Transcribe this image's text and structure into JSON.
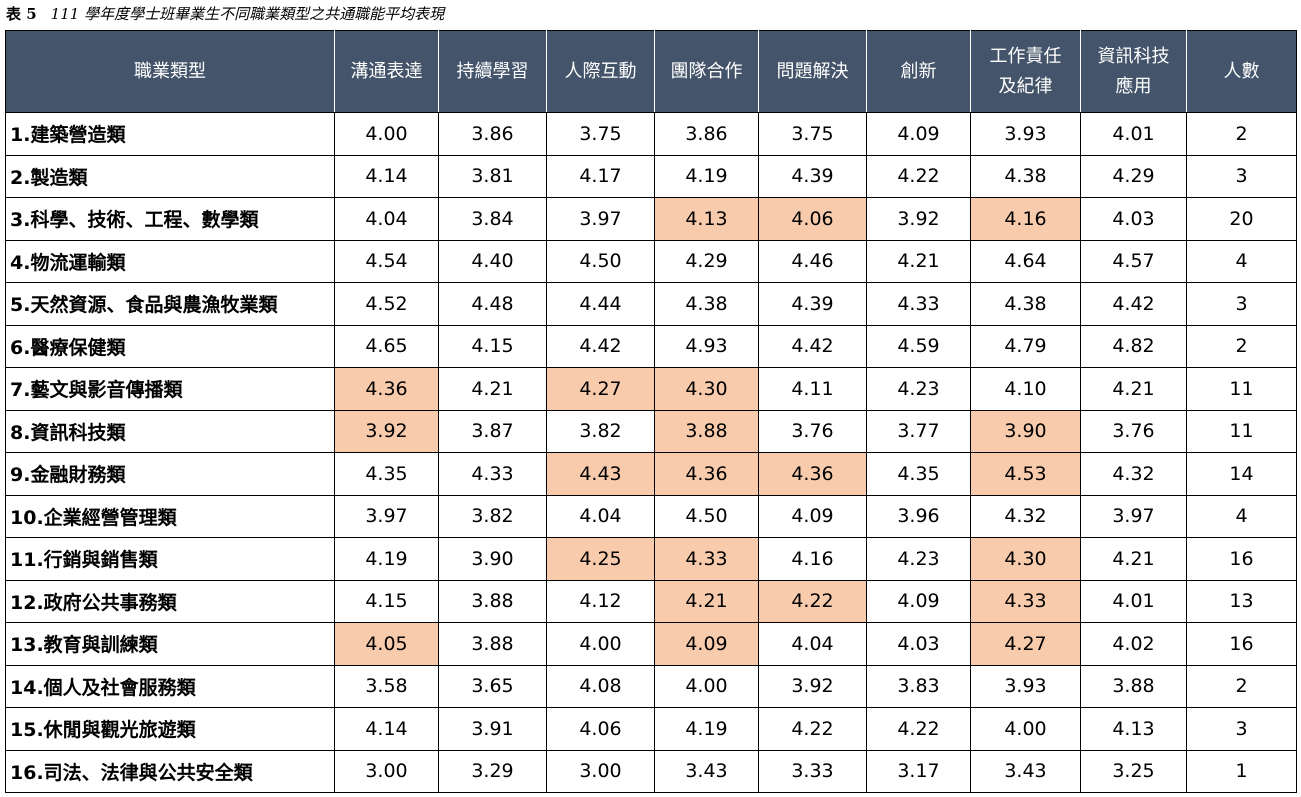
{
  "caption": {
    "label": "表 5",
    "title": "111 學年度學士班畢業生不同職業類型之共通職能平均表現"
  },
  "table": {
    "headers": [
      "職業類型",
      "溝通表達",
      "持續學習",
      "人際互動",
      "團隊合作",
      "問題解決",
      "創新",
      [
        "工作責任",
        "及紀律"
      ],
      [
        "資訊科技",
        "應用"
      ],
      "人數"
    ],
    "rows": [
      [
        "1.建築營造類",
        "4.00",
        "3.86",
        "3.75",
        "3.86",
        "3.75",
        "4.09",
        "3.93",
        "4.01",
        "2"
      ],
      [
        "2.製造類",
        "4.14",
        "3.81",
        "4.17",
        "4.19",
        "4.39",
        "4.22",
        "4.38",
        "4.29",
        "3"
      ],
      [
        "3.科學、技術、工程、數學類",
        "4.04",
        "3.84",
        "3.97",
        "4.13",
        "4.06",
        "3.92",
        "4.16",
        "4.03",
        "20"
      ],
      [
        "4.物流運輸類",
        "4.54",
        "4.40",
        "4.50",
        "4.29",
        "4.46",
        "4.21",
        "4.64",
        "4.57",
        "4"
      ],
      [
        "5.天然資源、食品與農漁牧業類",
        "4.52",
        "4.48",
        "4.44",
        "4.38",
        "4.39",
        "4.33",
        "4.38",
        "4.42",
        "3"
      ],
      [
        "6.醫療保健類",
        "4.65",
        "4.15",
        "4.42",
        "4.93",
        "4.42",
        "4.59",
        "4.79",
        "4.82",
        "2"
      ],
      [
        "7.藝文與影音傳播類",
        "4.36",
        "4.21",
        "4.27",
        "4.30",
        "4.11",
        "4.23",
        "4.10",
        "4.21",
        "11"
      ],
      [
        "8.資訊科技類",
        "3.92",
        "3.87",
        "3.82",
        "3.88",
        "3.76",
        "3.77",
        "3.90",
        "3.76",
        "11"
      ],
      [
        "9.金融財務類",
        "4.35",
        "4.33",
        "4.43",
        "4.36",
        "4.36",
        "4.35",
        "4.53",
        "4.32",
        "14"
      ],
      [
        "10.企業經營管理類",
        "3.97",
        "3.82",
        "4.04",
        "4.50",
        "4.09",
        "3.96",
        "4.32",
        "3.97",
        "4"
      ],
      [
        "11.行銷與銷售類",
        "4.19",
        "3.90",
        "4.25",
        "4.33",
        "4.16",
        "4.23",
        "4.30",
        "4.21",
        "16"
      ],
      [
        "12.政府公共事務類",
        "4.15",
        "3.88",
        "4.12",
        "4.21",
        "4.22",
        "4.09",
        "4.33",
        "4.01",
        "13"
      ],
      [
        "13.教育與訓練類",
        "4.05",
        "3.88",
        "4.00",
        "4.09",
        "4.04",
        "4.03",
        "4.27",
        "4.02",
        "16"
      ],
      [
        "14.個人及社會服務類",
        "3.58",
        "3.65",
        "4.08",
        "4.00",
        "3.92",
        "3.83",
        "3.93",
        "3.88",
        "2"
      ],
      [
        "15.休閒與觀光旅遊類",
        "4.14",
        "3.91",
        "4.06",
        "4.19",
        "4.22",
        "4.22",
        "4.00",
        "4.13",
        "3"
      ],
      [
        "16.司法、法律與公共安全類",
        "3.00",
        "3.29",
        "3.00",
        "3.43",
        "3.33",
        "3.17",
        "3.43",
        "3.25",
        "1"
      ]
    ],
    "header_color": "#44546a",
    "highlight_color": "#f8cbad",
    "highlighted_cells": [
      [
        2,
        4
      ],
      [
        2,
        5
      ],
      [
        2,
        7
      ],
      [
        6,
        1
      ],
      [
        6,
        3
      ],
      [
        6,
        4
      ],
      [
        7,
        1
      ],
      [
        7,
        4
      ],
      [
        7,
        7
      ],
      [
        8,
        3
      ],
      [
        8,
        4
      ],
      [
        8,
        5
      ],
      [
        8,
        7
      ],
      [
        10,
        3
      ],
      [
        10,
        4
      ],
      [
        10,
        7
      ],
      [
        11,
        4
      ],
      [
        11,
        5
      ],
      [
        11,
        7
      ],
      [
        12,
        1
      ],
      [
        12,
        4
      ],
      [
        12,
        7
      ]
    ]
  }
}
